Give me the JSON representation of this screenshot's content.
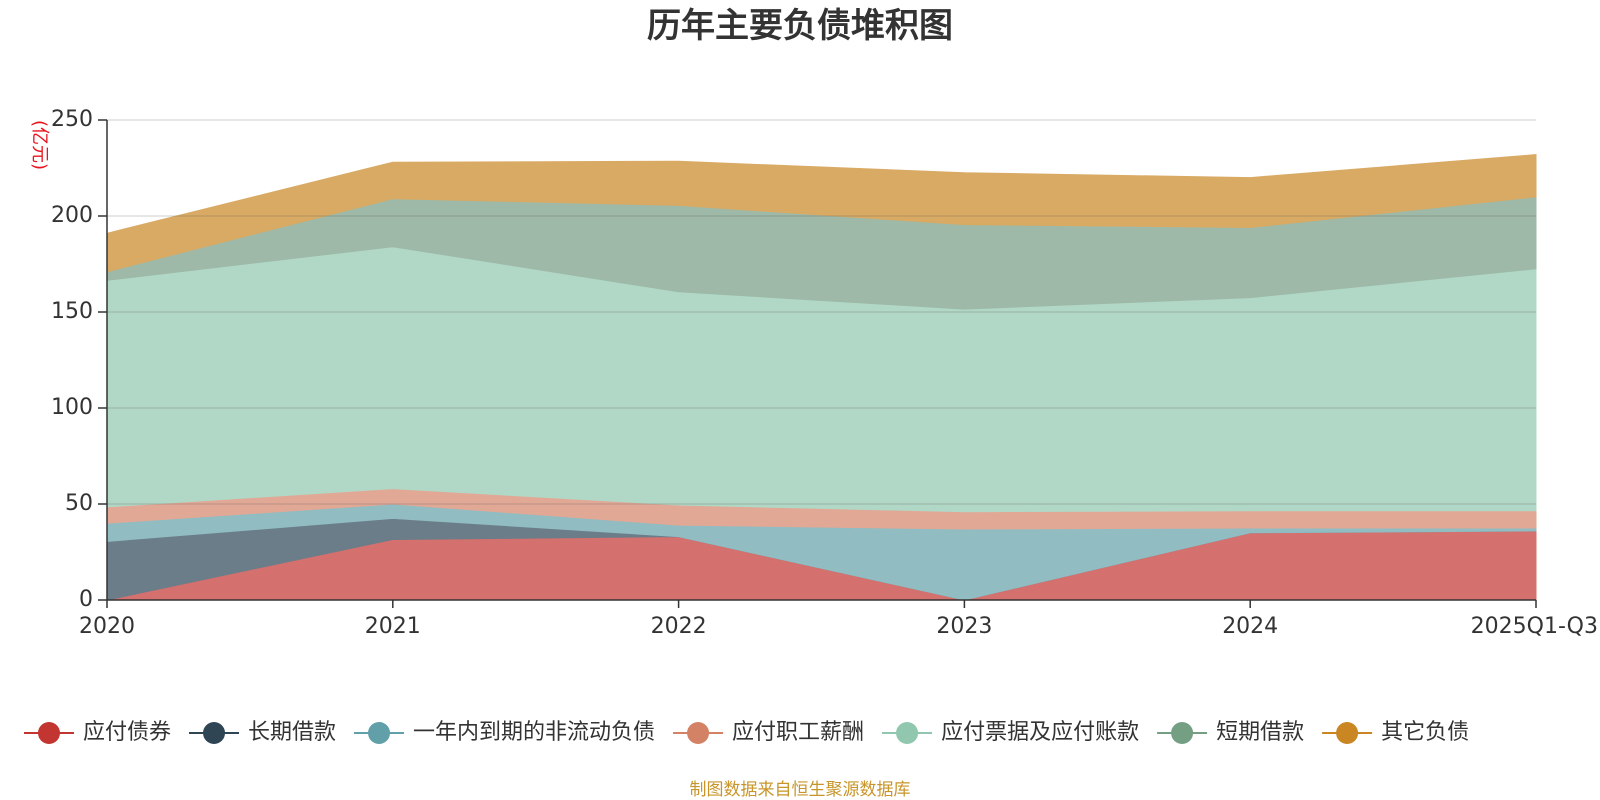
{
  "chart_data": {
    "type": "area",
    "stacked": true,
    "title": "历年主要负债堆积图",
    "ylabel": "(亿元)",
    "ylim": [
      0,
      250
    ],
    "yticks": [
      0,
      50,
      100,
      150,
      200,
      250
    ],
    "categories": [
      "2020",
      "2021",
      "2022",
      "2023",
      "2024",
      "2025Q1-Q3"
    ],
    "series": [
      {
        "name": "应付债券",
        "color": "#c23531",
        "fill": "#d4706d",
        "values": [
          0,
          31.5,
          33,
          0,
          35,
          36
        ]
      },
      {
        "name": "长期借款",
        "color": "#2f4554",
        "fill": "#6b7d89",
        "values": [
          30.5,
          11,
          0,
          0,
          0,
          0
        ]
      },
      {
        "name": "一年内到期的非流动负债",
        "color": "#61a0a8",
        "fill": "#90bcc2",
        "values": [
          9.5,
          7.5,
          6,
          37,
          2.5,
          1.5
        ]
      },
      {
        "name": "应付职工薪酬",
        "color": "#d48265",
        "fill": "#e1a896",
        "values": [
          8.5,
          8,
          10.5,
          9,
          9,
          9
        ]
      },
      {
        "name": "应付票据及应付账款",
        "color": "#91c7ae",
        "fill": "#b1d8c6",
        "values": [
          118,
          126,
          111,
          105.5,
          111,
          126
        ]
      },
      {
        "name": "短期借款",
        "color": "#749f83",
        "fill": "#9eb9a7",
        "values": [
          4.5,
          25,
          45,
          44,
          36.5,
          37.5
        ]
      },
      {
        "name": "其它负债",
        "color": "#ca8622",
        "fill": "#d8aa64",
        "values": [
          20,
          19,
          23,
          27,
          26,
          22
        ]
      }
    ],
    "legend_position": "bottom",
    "grid": true
  },
  "source_note": "制图数据来自恒生聚源数据库"
}
